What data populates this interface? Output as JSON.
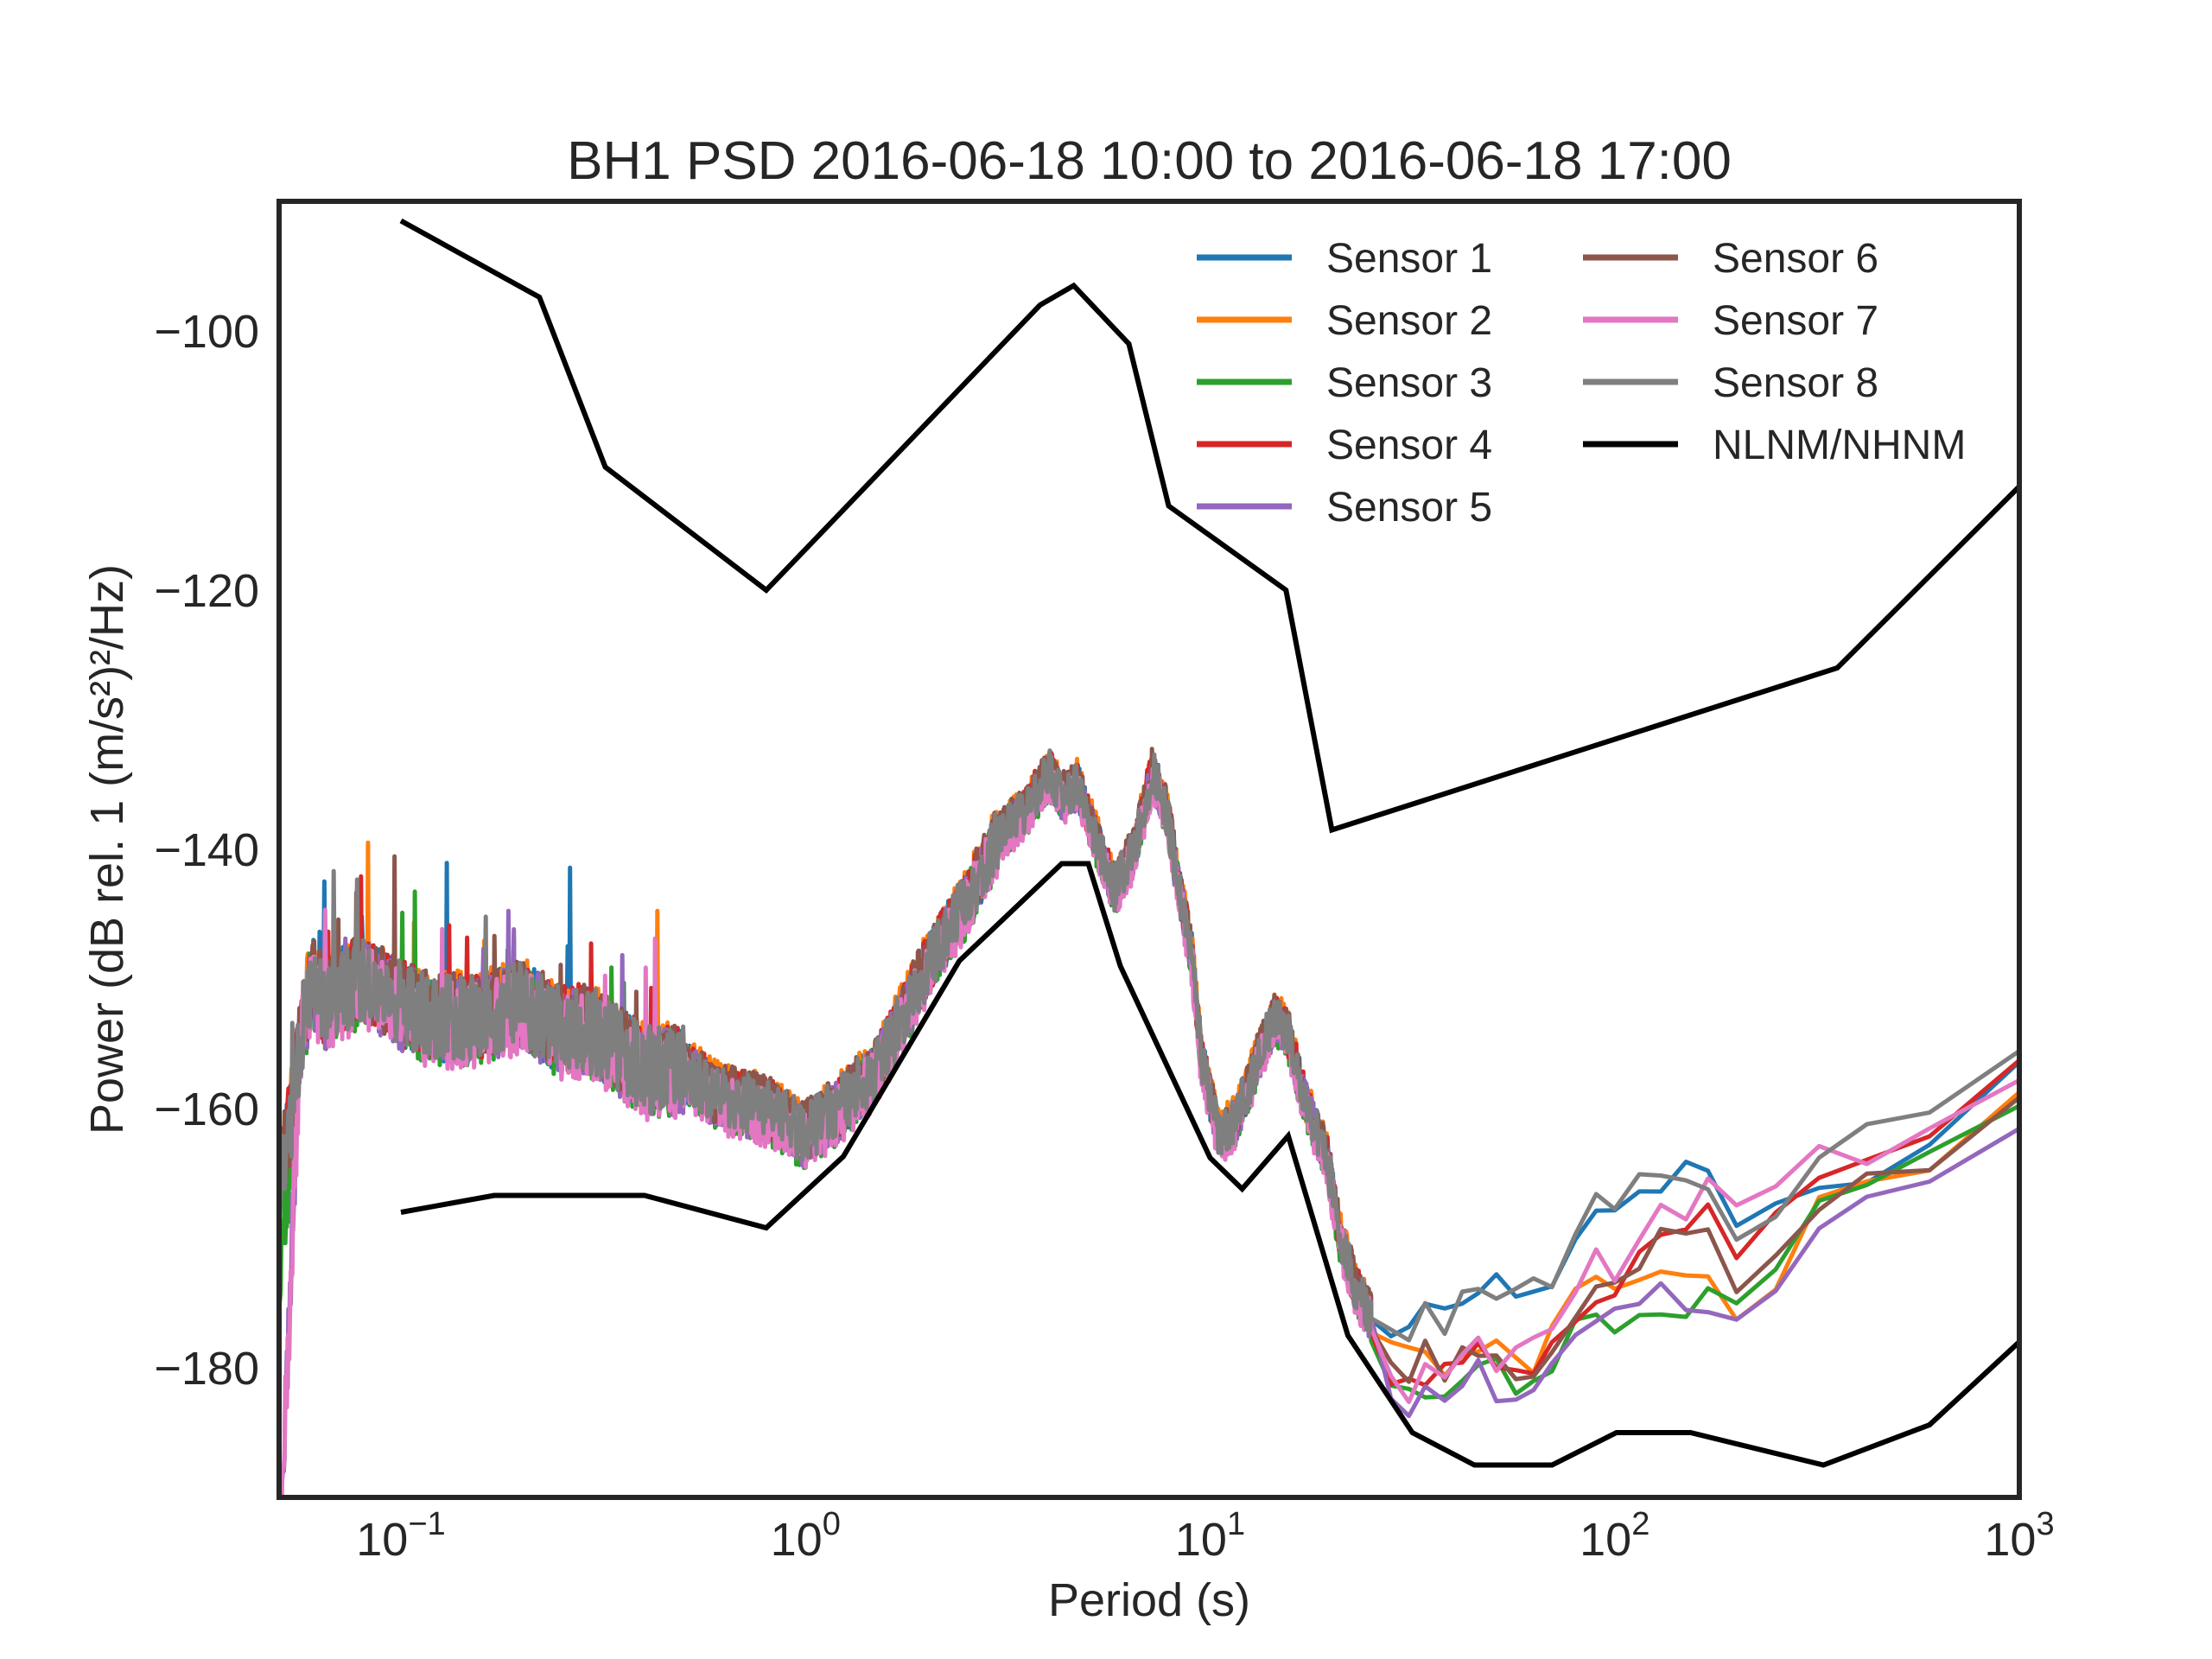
{
  "chart_data": {
    "type": "line",
    "title": "BH1 PSD 2016-06-18 10:00 to 2016-06-18 17:00",
    "xlabel": "Period (s)",
    "ylabel": "Power (dB rel. 1 (m/s²)²/Hz)",
    "xscale": "log",
    "xlim": [
      0.05,
      1000
    ],
    "ylim": [
      -190,
      -90
    ],
    "x_ticks": [
      {
        "value": 0.1,
        "base": "10",
        "exp": "−1"
      },
      {
        "value": 1,
        "base": "10",
        "exp": "0"
      },
      {
        "value": 10,
        "base": "10",
        "exp": "1"
      },
      {
        "value": 100,
        "base": "10",
        "exp": "2"
      },
      {
        "value": 1000,
        "base": "10",
        "exp": "3"
      }
    ],
    "y_ticks": [
      {
        "value": -100,
        "label": "−100"
      },
      {
        "value": -120,
        "label": "−120"
      },
      {
        "value": -140,
        "label": "−140"
      },
      {
        "value": -160,
        "label": "−160"
      },
      {
        "value": -180,
        "label": "−180"
      }
    ],
    "grid": false,
    "legend_position": "top-right",
    "series": [
      {
        "name": "Sensor 1",
        "color": "#1f77b4",
        "offset_low": 0.0,
        "offset_high": [
          0,
          6,
          9,
          7,
          11,
          8,
          9,
          12,
          13,
          9,
          10,
          11,
          13,
          14,
          15,
          13,
          15,
          14,
          12,
          8,
          1,
          0,
          2,
          3
        ]
      },
      {
        "name": "Sensor 2",
        "color": "#ff7f0e",
        "offset_low": 0.3,
        "offset_high": [
          0,
          2,
          4,
          2,
          1,
          0,
          2,
          4,
          3,
          1,
          3,
          4,
          3,
          2,
          3,
          2,
          1,
          -1,
          -4,
          -2,
          -1,
          -2,
          -2,
          -1
        ]
      },
      {
        "name": "Sensor 3",
        "color": "#2ca02c",
        "offset_low": -0.4,
        "offset_high": [
          0,
          -2,
          -1,
          -3,
          -1,
          -2,
          -1,
          0,
          -1,
          -2,
          -1,
          0,
          -1,
          -3,
          -2,
          -4,
          -5,
          -3,
          -2,
          -1,
          -1,
          -2,
          -2,
          -3
        ]
      },
      {
        "name": "Sensor 4",
        "color": "#d62728",
        "offset_low": 0.1,
        "offset_high": [
          0,
          -1,
          0,
          -2,
          1,
          0,
          1,
          -1,
          2,
          1,
          0,
          1,
          2,
          3,
          4,
          5,
          7,
          8,
          8,
          7,
          4,
          2,
          2,
          3
        ]
      },
      {
        "name": "Sensor 5",
        "color": "#9467bd",
        "offset_low": -0.2,
        "offset_high": [
          0,
          -3,
          -4,
          -2,
          -3,
          -4,
          -2,
          -3,
          -2,
          -3,
          -1,
          -2,
          -1,
          -2,
          -3,
          -2,
          -4,
          -5,
          -3,
          -2,
          -3,
          -4,
          -5,
          -6
        ]
      },
      {
        "name": "Sensor 6",
        "color": "#8c564b",
        "offset_low": 0.2,
        "offset_high": [
          0,
          1,
          0,
          2,
          1,
          2,
          0,
          1,
          2,
          0,
          1,
          2,
          3,
          2,
          4,
          5,
          6,
          5,
          3,
          0,
          -1,
          -2,
          -3,
          -4
        ]
      },
      {
        "name": "Sensor 7",
        "color": "#e377c2",
        "offset_low": -0.6,
        "offset_high": [
          0,
          -1,
          -2,
          0,
          -1,
          1,
          2,
          1,
          3,
          4,
          2,
          5,
          6,
          4,
          8,
          9,
          10,
          11,
          12,
          9,
          6,
          3,
          1,
          0
        ]
      },
      {
        "name": "Sensor 8",
        "color": "#7f7f7f",
        "offset_low": 0.0,
        "offset_high": [
          0,
          5,
          7,
          10,
          8,
          9,
          11,
          10,
          12,
          13,
          11,
          14,
          15,
          13,
          16,
          14,
          13,
          12,
          9,
          6,
          4,
          6,
          5,
          4
        ]
      },
      {
        "name": "NLNM/NHNM",
        "color": "#000000",
        "offset_low": 0.0,
        "offset_high": []
      }
    ],
    "psd_envelope": {
      "x": [
        0.05,
        0.055,
        0.06,
        0.065,
        0.07,
        0.08,
        0.09,
        0.1,
        0.12,
        0.15,
        0.2,
        0.25,
        0.3,
        0.4,
        0.5,
        0.6,
        0.8,
        1.0,
        1.2,
        1.5,
        2.0,
        2.5,
        3.0,
        3.5,
        4.0,
        4.3,
        4.7,
        5.2,
        5.8,
        6.5,
        7.2,
        7.8,
        8.5,
        9.0,
        9.5,
        10.5,
        11.5,
        12.5,
        13.5,
        14.5,
        15.5,
        17.0,
        18.0,
        19.5,
        21.0,
        23.0,
        25.0
      ],
      "y": [
        -158,
        -157,
        -150,
        -152,
        -151,
        -150,
        -151,
        -152,
        -153,
        -153,
        -152,
        -154,
        -154,
        -157,
        -157,
        -159,
        -160,
        -162,
        -160,
        -157,
        -149,
        -144,
        -139,
        -137,
        -134,
        -136,
        -135,
        -139,
        -143,
        -140,
        -134,
        -137,
        -144,
        -148,
        -156,
        -162,
        -161,
        -158,
        -155,
        -153,
        -154,
        -159,
        -161,
        -164,
        -170,
        -174,
        -176
      ]
    },
    "psd_high": {
      "x": [
        25,
        28,
        31,
        34,
        38,
        42,
        46,
        51,
        57,
        63,
        70,
        80,
        90,
        100,
        115,
        130,
        150,
        170,
        200,
        250,
        320,
        420,
        600,
        1000
      ],
      "y": [
        -177,
        -180,
        -181,
        -180,
        -181,
        -180,
        -179,
        -180,
        -181,
        -180,
        -179,
        -177,
        -175,
        -175,
        -174,
        -173,
        -173,
        -172,
        -175,
        -172,
        -167,
        -165,
        -163,
        -158
      ]
    },
    "nlnm": {
      "x": [
        0.1,
        0.17,
        0.4,
        0.8,
        1.24,
        2.4,
        4.3,
        5.0,
        6.0,
        10.0,
        12.0,
        15.6,
        21.9,
        31.6,
        45.0,
        70.0,
        101.0,
        154.0,
        328.0,
        600.0,
        1000.0
      ],
      "y": [
        -168.0,
        -166.7,
        -166.7,
        -169.2,
        -163.7,
        -148.6,
        -141.1,
        -141.1,
        -149.0,
        -163.8,
        -166.2,
        -162.1,
        -177.5,
        -185.0,
        -187.5,
        -187.5,
        -185.0,
        -185.0,
        -187.5,
        -184.4,
        -178.0
      ]
    },
    "nhnm": {
      "x": [
        0.1,
        0.22,
        0.32,
        0.8,
        3.8,
        4.6,
        6.3,
        7.9,
        15.4,
        20.0,
        354.8,
        1000.0
      ],
      "y": [
        -91.5,
        -97.4,
        -110.5,
        -120.0,
        -98.0,
        -96.5,
        -101.0,
        -113.5,
        -120.0,
        -138.5,
        -126.0,
        -112.0
      ]
    }
  }
}
